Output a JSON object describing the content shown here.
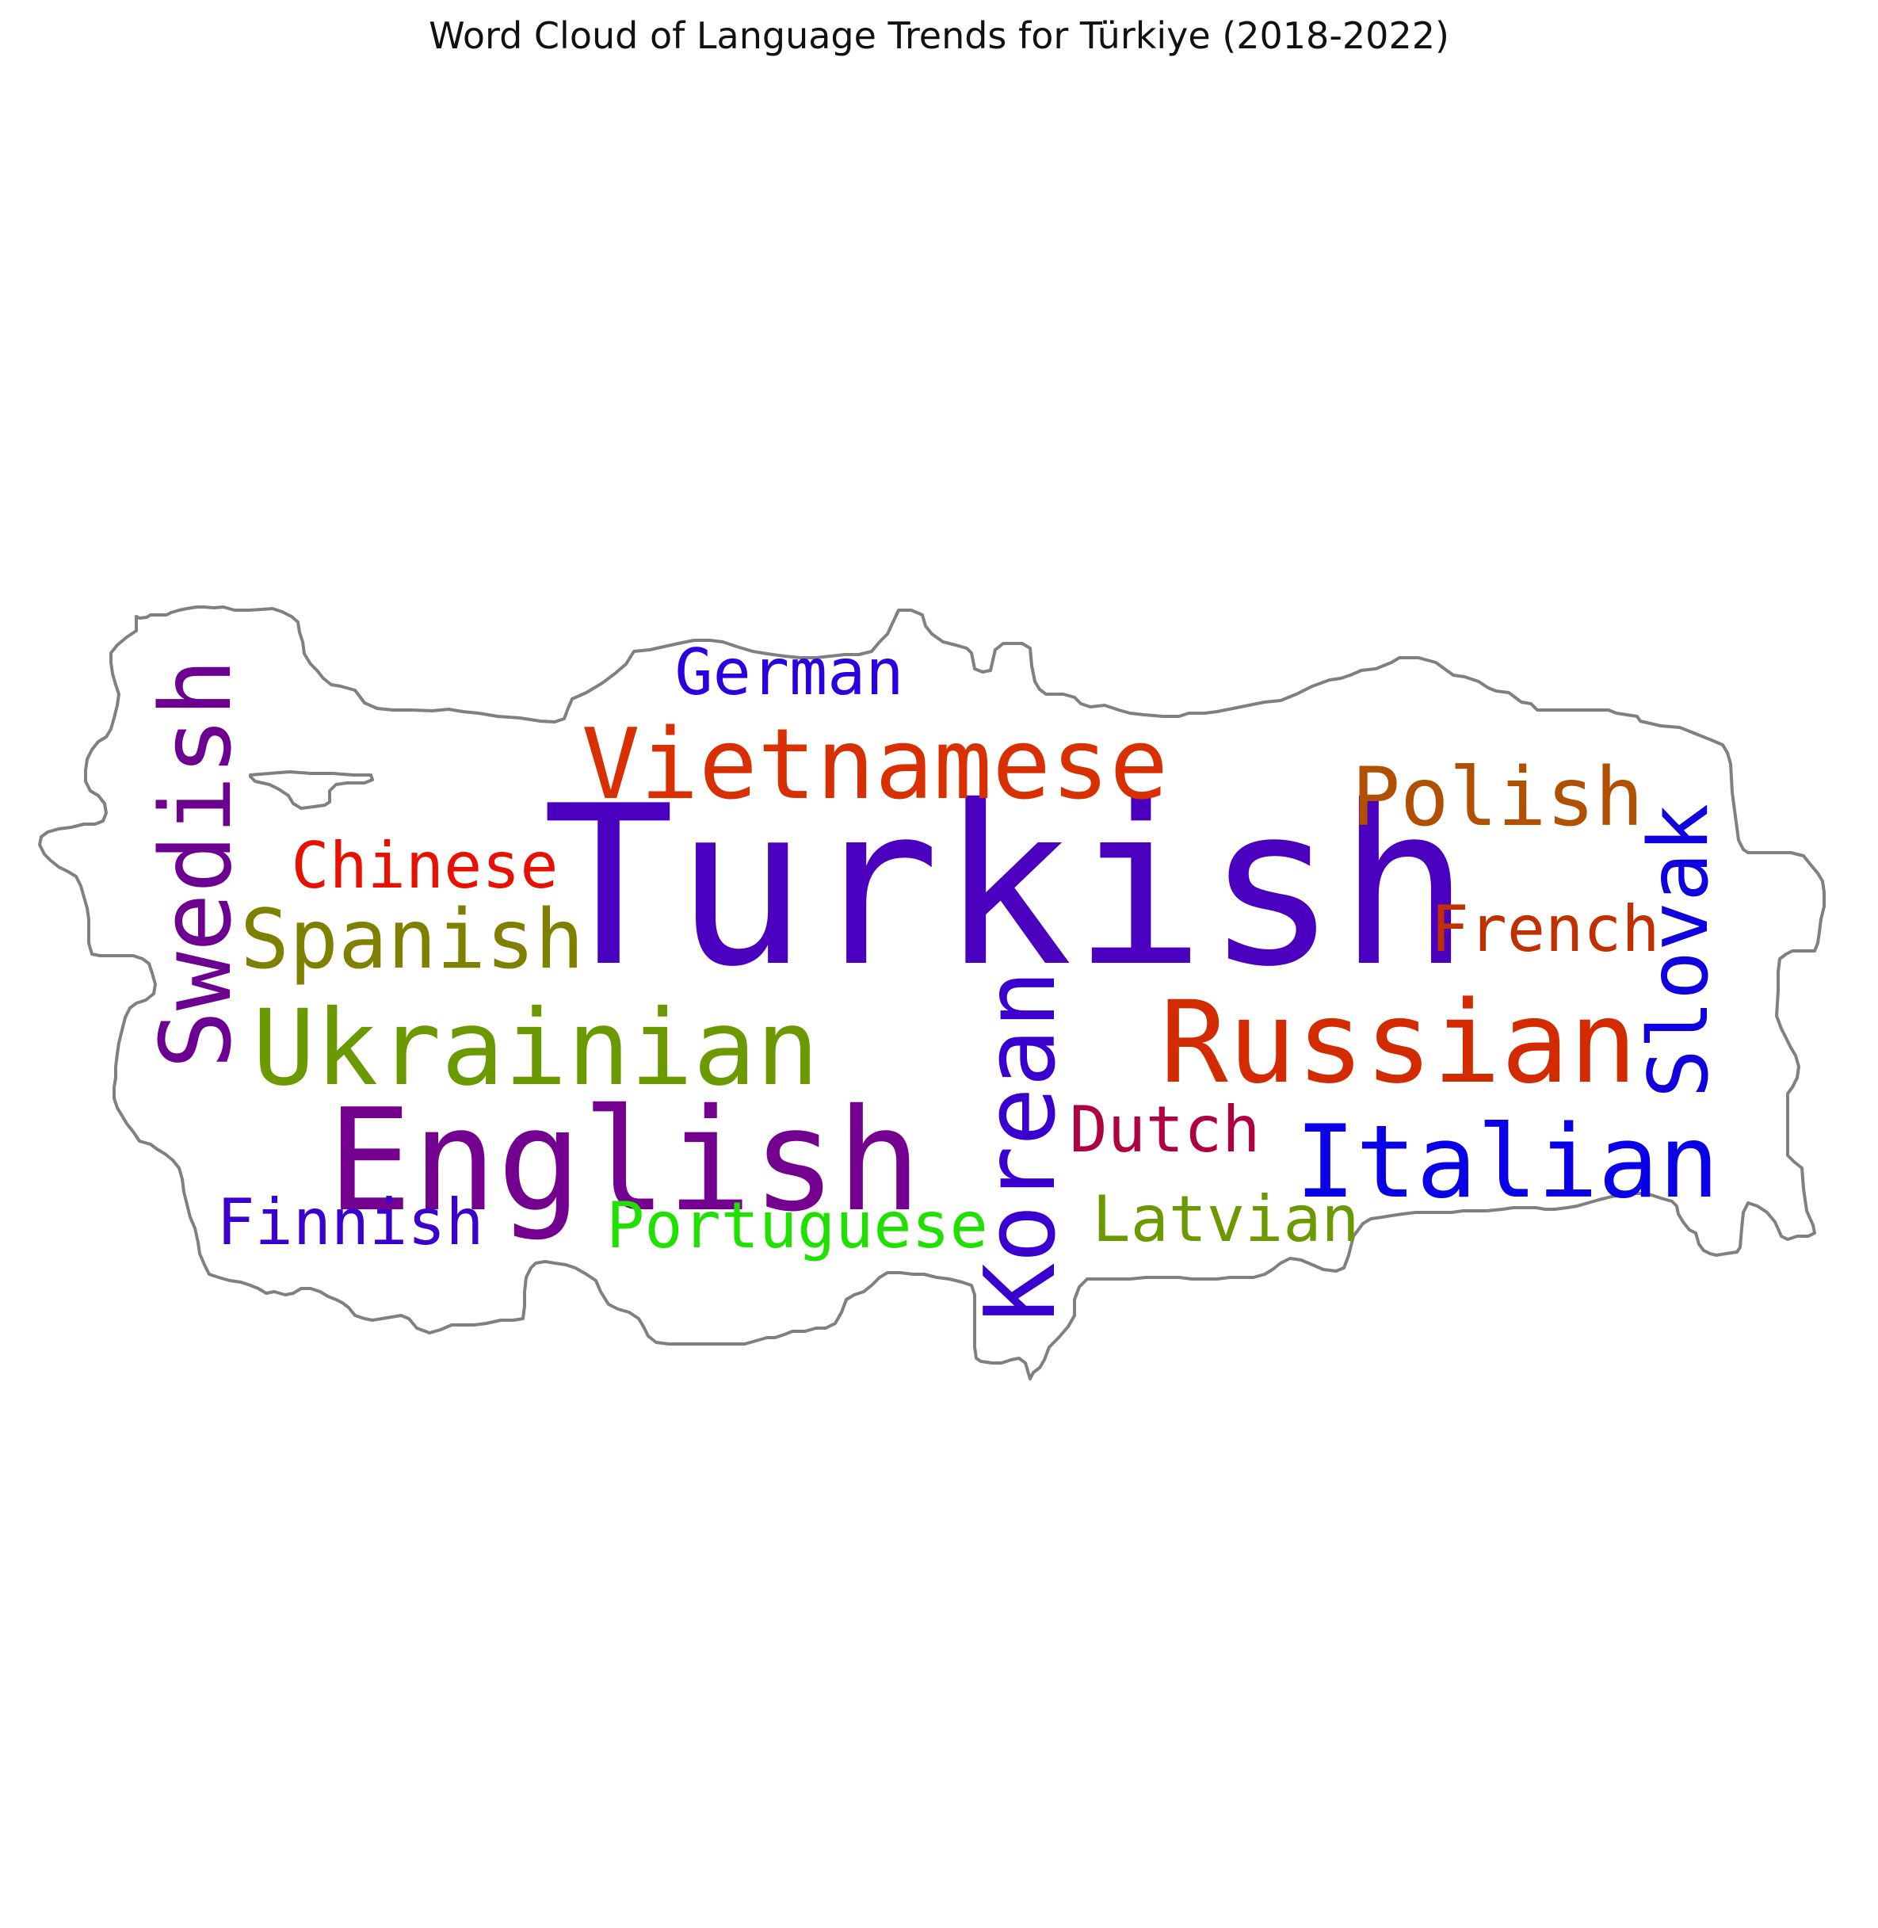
{
  "chart_data": {
    "type": "wordcloud",
    "title": "Word Cloud of Language Trends for Türkiye (2018-2022)",
    "outline_color": "#808080",
    "words": [
      {
        "text": "Turkish",
        "color": "#4b00c0",
        "orientation": "horizontal"
      },
      {
        "text": "English",
        "color": "#740090",
        "orientation": "horizontal"
      },
      {
        "text": "Russian",
        "color": "#d42a00",
        "orientation": "horizontal"
      },
      {
        "text": "Vietnamese",
        "color": "#d83000",
        "orientation": "horizontal"
      },
      {
        "text": "Ukrainian",
        "color": "#6a9a00",
        "orientation": "horizontal"
      },
      {
        "text": "Italian",
        "color": "#0a00e8",
        "orientation": "horizontal"
      },
      {
        "text": "Swedish",
        "color": "#6c0090",
        "orientation": "vertical"
      },
      {
        "text": "Korean",
        "color": "#3a00d0",
        "orientation": "vertical"
      },
      {
        "text": "Spanish",
        "color": "#808000",
        "orientation": "horizontal"
      },
      {
        "text": "Polish",
        "color": "#b05000",
        "orientation": "horizontal"
      },
      {
        "text": "Slovak",
        "color": "#1000e0",
        "orientation": "vertical"
      },
      {
        "text": "Portuguese",
        "color": "#20e000",
        "orientation": "horizontal"
      },
      {
        "text": "Latvian",
        "color": "#6a9a00",
        "orientation": "horizontal"
      },
      {
        "text": "Finnish",
        "color": "#3a00d0",
        "orientation": "horizontal"
      },
      {
        "text": "German",
        "color": "#2a00e0",
        "orientation": "horizontal"
      },
      {
        "text": "Chinese",
        "color": "#e81000",
        "orientation": "horizontal"
      },
      {
        "text": "French",
        "color": "#c03000",
        "orientation": "horizontal"
      },
      {
        "text": "Dutch",
        "color": "#b00040",
        "orientation": "horizontal"
      }
    ]
  }
}
